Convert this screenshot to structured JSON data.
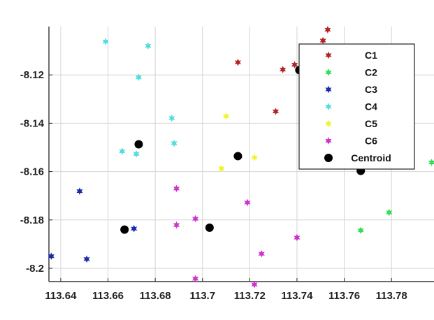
{
  "chart_data": {
    "type": "scatter",
    "title": "",
    "xlabel": "",
    "ylabel": "",
    "xlim": [
      113.635,
      113.798
    ],
    "ylim": [
      -8.2055,
      -8.1
    ],
    "grid": true,
    "legend_position": "top-right",
    "x_ticks": [
      113.64,
      113.66,
      113.68,
      113.7,
      113.72,
      113.74,
      113.76,
      113.78
    ],
    "x_tick_labels": [
      "113.64",
      "113.66",
      "113.68",
      "113.7",
      "113.72",
      "113.74",
      "113.76",
      "113.78"
    ],
    "y_ticks": [
      -8.12,
      -8.14,
      -8.16,
      -8.18,
      -8.2
    ],
    "y_tick_labels": [
      "-8.12",
      "-8.14",
      "-8.16",
      "-8.18",
      "-8.2"
    ],
    "series": [
      {
        "name": "C1",
        "color": "#b22222",
        "marker": "star",
        "points": [
          [
            113.753,
            -8.1013
          ],
          [
            113.751,
            -8.1058
          ],
          [
            113.715,
            -8.1148
          ],
          [
            113.734,
            -8.1178
          ],
          [
            113.739,
            -8.1158
          ],
          [
            113.731,
            -8.1351
          ]
        ]
      },
      {
        "name": "C2",
        "color": "#33dd55",
        "marker": "star",
        "points": [
          [
            113.797,
            -8.1562
          ],
          [
            113.779,
            -8.1769
          ],
          [
            113.767,
            -8.1843
          ]
        ]
      },
      {
        "name": "C3",
        "color": "#1a2aa8",
        "marker": "star",
        "points": [
          [
            113.648,
            -8.1681
          ],
          [
            113.671,
            -8.1836
          ],
          [
            113.636,
            -8.195
          ],
          [
            113.651,
            -8.1962
          ]
        ]
      },
      {
        "name": "C4",
        "color": "#55dddd",
        "marker": "star",
        "points": [
          [
            113.659,
            -8.1062
          ],
          [
            113.677,
            -8.108
          ],
          [
            113.673,
            -8.121
          ],
          [
            113.687,
            -8.1379
          ],
          [
            113.688,
            -8.1483
          ],
          [
            113.666,
            -8.1516
          ],
          [
            113.672,
            -8.1527
          ]
        ]
      },
      {
        "name": "C5",
        "color": "#f2f230",
        "marker": "star",
        "points": [
          [
            113.71,
            -8.1371
          ],
          [
            113.722,
            -8.1542
          ],
          [
            113.708,
            -8.1587
          ]
        ]
      },
      {
        "name": "C6",
        "color": "#cc33cc",
        "marker": "star",
        "points": [
          [
            113.689,
            -8.167
          ],
          [
            113.719,
            -8.1728
          ],
          [
            113.697,
            -8.1795
          ],
          [
            113.689,
            -8.1821
          ],
          [
            113.74,
            -8.1873
          ],
          [
            113.725,
            -8.194
          ],
          [
            113.697,
            -8.2043
          ],
          [
            113.722,
            -8.2067
          ]
        ]
      },
      {
        "name": "Centroid",
        "color": "#000000",
        "marker": "dot",
        "points": [
          [
            113.741,
            -8.118
          ],
          [
            113.673,
            -8.1487
          ],
          [
            113.715,
            -8.1536
          ],
          [
            113.767,
            -8.1597
          ],
          [
            113.667,
            -8.184
          ],
          [
            113.703,
            -8.1832
          ]
        ]
      }
    ]
  }
}
